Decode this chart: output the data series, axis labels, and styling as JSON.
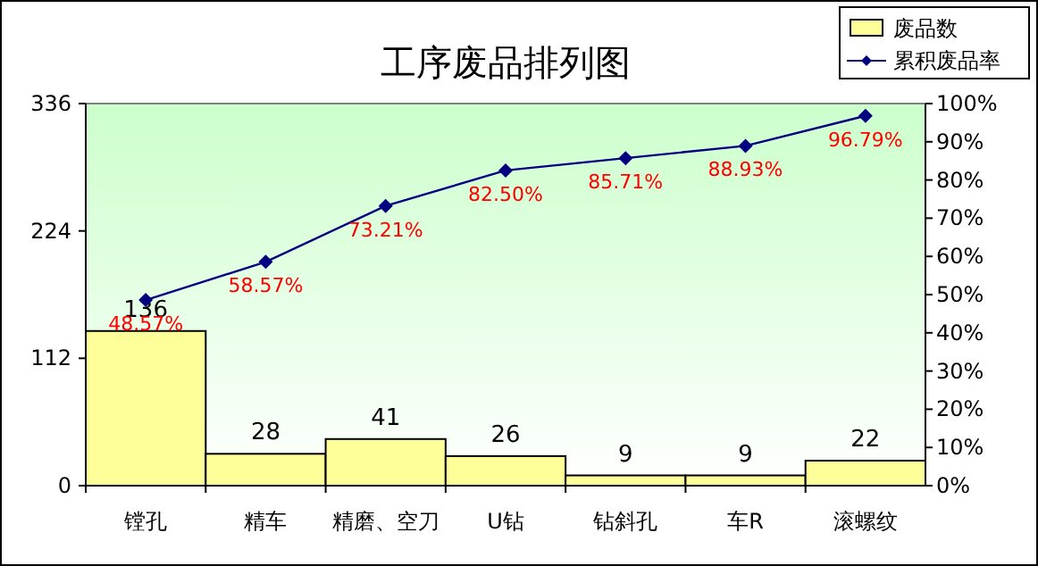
{
  "chart_data": {
    "type": "bar",
    "title": "工序废品排列图",
    "categories": [
      "镗孔",
      "精车",
      "精磨、空刀",
      "U钻",
      "钻斜孔",
      "车R",
      "滚螺纹"
    ],
    "series": [
      {
        "name": "废品数",
        "type": "bar",
        "color": "#ffff99",
        "values": [
          136,
          28,
          41,
          26,
          9,
          9,
          22
        ],
        "value_labels": [
          "136",
          "28",
          "41",
          "26",
          "9",
          "9",
          "22"
        ]
      },
      {
        "name": "累积废品率",
        "type": "line",
        "axis": "y2",
        "color": "#000080",
        "values": [
          48.57,
          58.57,
          73.21,
          82.5,
          85.71,
          88.93,
          96.79
        ],
        "value_labels": [
          "48.57%",
          "58.57%",
          "73.21%",
          "82.50%",
          "85.71%",
          "88.93%",
          "96.79%"
        ]
      }
    ],
    "ylim": [
      0,
      336
    ],
    "yticks": [
      0,
      112,
      224,
      336
    ],
    "y2lim": [
      0,
      100
    ],
    "y2ticks": [
      {
        "value": 0,
        "label": "0%"
      },
      {
        "value": 10,
        "label": "10%"
      },
      {
        "value": 20,
        "label": "20%"
      },
      {
        "value": 30,
        "label": "30%"
      },
      {
        "value": 40,
        "label": "40%"
      },
      {
        "value": 50,
        "label": "50%"
      },
      {
        "value": 60,
        "label": "60%"
      },
      {
        "value": 70,
        "label": "70%"
      },
      {
        "value": 80,
        "label": "80%"
      },
      {
        "value": 90,
        "label": "90%"
      },
      {
        "value": 100,
        "label": "100%"
      }
    ],
    "marker": "diamond",
    "legend": "top right"
  }
}
